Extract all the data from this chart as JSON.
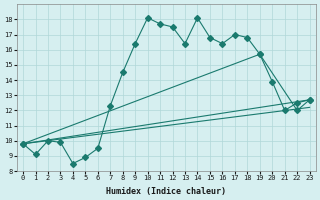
{
  "xlabel": "Humidex (Indice chaleur)",
  "bg_color": "#d6eff0",
  "grid_color": "#b0d8d8",
  "line_color": "#1a7a6e",
  "xlim": [
    -0.5,
    23.5
  ],
  "ylim": [
    8,
    19
  ],
  "yticks": [
    8,
    9,
    10,
    11,
    12,
    13,
    14,
    15,
    16,
    17,
    18
  ],
  "xticks": [
    0,
    1,
    2,
    3,
    4,
    5,
    6,
    7,
    8,
    9,
    10,
    11,
    12,
    13,
    14,
    15,
    16,
    17,
    18,
    19,
    20,
    21,
    22,
    23
  ],
  "line1_x": [
    0,
    1,
    2,
    3,
    4,
    5,
    6,
    7,
    8,
    9,
    10,
    11,
    12,
    13,
    14,
    15,
    16,
    17,
    18,
    19,
    20,
    21,
    22,
    23
  ],
  "line1_y": [
    9.8,
    9.1,
    10.0,
    9.9,
    8.5,
    8.9,
    9.5,
    12.3,
    14.5,
    16.4,
    18.1,
    17.7,
    17.5,
    16.4,
    18.1,
    16.8,
    16.4,
    17.0,
    16.8,
    15.7,
    13.9,
    12.0,
    12.5,
    12.7
  ],
  "line2_x": [
    0,
    19,
    22,
    23
  ],
  "line2_y": [
    9.8,
    15.7,
    12.0,
    12.7
  ],
  "line3_x": [
    0,
    23
  ],
  "line3_y": [
    9.8,
    12.2
  ],
  "line4_x": [
    0,
    23
  ],
  "line4_y": [
    9.8,
    12.7
  ],
  "marker": "D",
  "markersize": 3
}
